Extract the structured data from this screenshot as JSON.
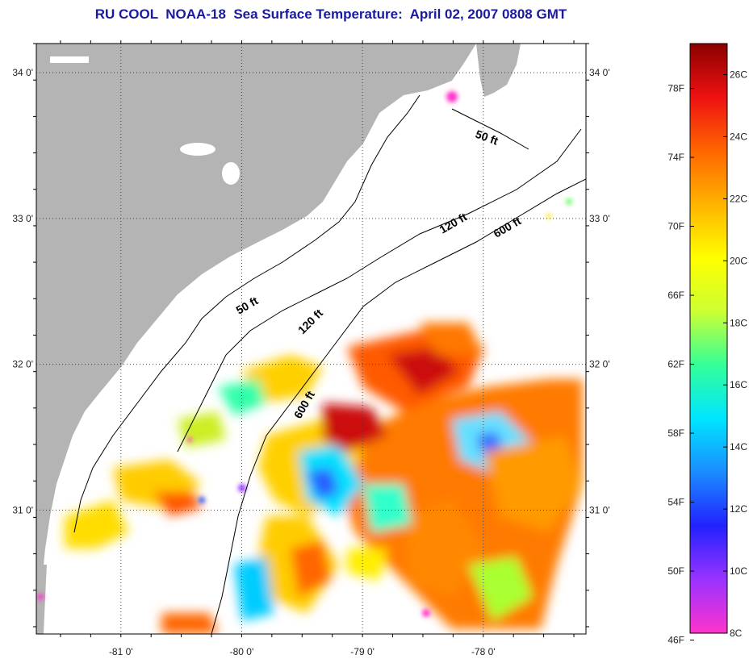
{
  "title": "RU COOL  NOAA-18  Sea Surface Temperature:  April 02, 2007 0808 GMT",
  "map": {
    "lat_labels": [
      "34 0'",
      "33 0'",
      "32 0'",
      "31 0'"
    ],
    "lon_labels": [
      "-81 0'",
      "-80 0'",
      "-79 0'",
      "-78 0'"
    ],
    "lat_values": [
      34,
      33,
      32,
      31
    ],
    "lon_values": [
      -81,
      -80,
      -79,
      -78
    ],
    "lon_range": [
      -81.7,
      -77.15
    ],
    "lat_range": [
      30.15,
      34.2
    ],
    "depth_labels": [
      "50 ft",
      "120 ft",
      "600 ft",
      "50 ft",
      "120 ft",
      "600 ft"
    ],
    "colors": {
      "land": "#b4b4b4",
      "ocean": "#ffffff",
      "grid": "#444444"
    }
  },
  "colorbar": {
    "fahrenheit_labels": [
      "78F",
      "74F",
      "70F",
      "66F",
      "62F",
      "58F",
      "54F",
      "50F",
      "46F"
    ],
    "celsius_labels": [
      "26C",
      "24C",
      "22C",
      "20C",
      "18C",
      "16C",
      "14C",
      "12C",
      "10C",
      "8C"
    ],
    "range_c": [
      8,
      27
    ],
    "colors": [
      "#ff33cc",
      "#9933ff",
      "#2222ff",
      "#1a8cff",
      "#00e5ff",
      "#33ff99",
      "#ccff33",
      "#ffff00",
      "#ffb300",
      "#ff6600",
      "#ee1111",
      "#8b0000"
    ]
  }
}
